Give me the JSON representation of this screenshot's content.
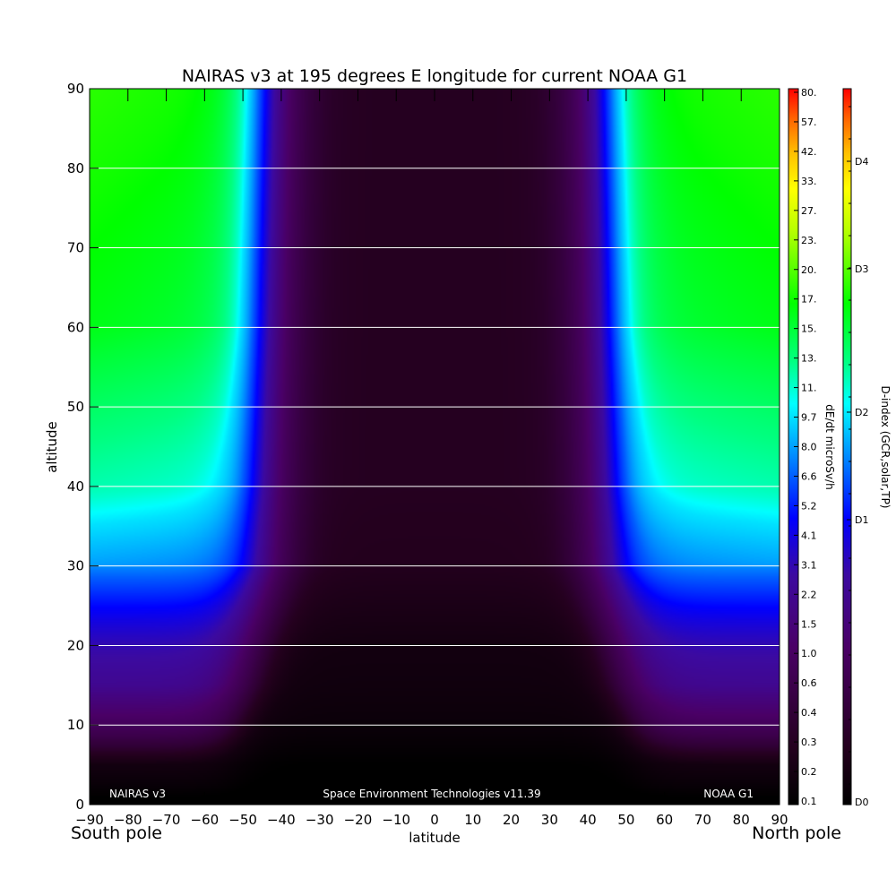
{
  "chart_data": {
    "type": "heatmap",
    "title": "NAIRAS v3 at 195 degrees E longitude for current NOAA G1",
    "xlabel": "latitude",
    "ylabel": "altitude",
    "x_ticks": [
      "-90",
      "-80",
      "-70",
      "-60",
      "-50",
      "-40",
      "-30",
      "-20",
      "-10",
      "0",
      "10",
      "20",
      "30",
      "40",
      "50",
      "60",
      "70",
      "80",
      "90"
    ],
    "y_ticks": [
      "0",
      "10",
      "20",
      "30",
      "40",
      "50",
      "60",
      "70",
      "80",
      "90"
    ],
    "xlim": [
      -90,
      90
    ],
    "ylim": [
      0,
      90
    ],
    "grid": "horizontal",
    "x_end_labels": {
      "left": "South pole",
      "right": "North pole"
    },
    "annotations": {
      "left": "NAIRAS v3",
      "center": "Space Environment Technologies v11.39",
      "right": "NOAA G1"
    },
    "colorbar_dose": {
      "label": "dE/dt microSv/h",
      "ticks": [
        "0.1",
        "0.2",
        "0.3",
        "0.4",
        "0.6",
        "1.0",
        "1.5",
        "2.2",
        "3.1",
        "4.1",
        "5.2",
        "6.6",
        "8.0",
        "9.7",
        "11.",
        "13.",
        "15.",
        "17.",
        "20.",
        "23.",
        "27.",
        "33.",
        "42.",
        "57.",
        "80."
      ]
    },
    "colorbar_dindex": {
      "label": "D-index (GCR,solar,TP)",
      "ticks": [
        "D0",
        "D1",
        "D2",
        "D3",
        "D4"
      ]
    },
    "dose_rate_profile_by_altitude": [
      {
        "altitude": 5,
        "polar": 0.2,
        "equator": 0.1
      },
      {
        "altitude": 10,
        "polar": 0.9,
        "equator": 0.15
      },
      {
        "altitude": 15,
        "polar": 2.2,
        "equator": 0.18
      },
      {
        "altitude": 20,
        "polar": 3.1,
        "equator": 0.2
      },
      {
        "altitude": 30,
        "polar": 7.5,
        "equator": 0.28
      },
      {
        "altitude": 40,
        "polar": 11,
        "equator": 0.3
      },
      {
        "altitude": 60,
        "polar": 15,
        "equator": 0.3
      },
      {
        "altitude": 90,
        "polar": 17,
        "equator": 0.3
      }
    ]
  }
}
